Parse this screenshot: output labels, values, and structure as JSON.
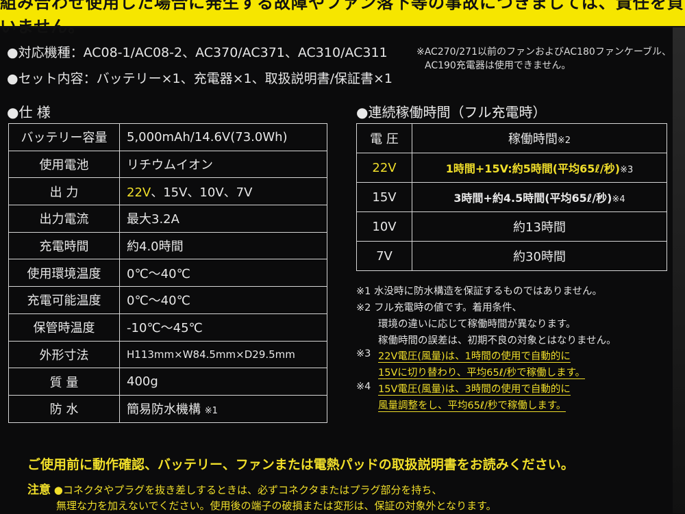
{
  "banner": "組み合わせ使用した場合に発生する故障やファン落下等の事故につきましては、責任を負いません。",
  "compat": "●対応機種：AC08-1/AC08-2、AC370/AC371、AC310/AC311",
  "contents": "●セット内容：バッテリー×1、充電器×1、取扱説明書/保証書×1",
  "compat_note": [
    "※AC270/271以前のファンおよびAC180ファンケーブル、",
    "AC190充電器は使用できません。"
  ],
  "spec_title": "●仕 様",
  "spec": [
    {
      "label": "バッテリー容量",
      "value": "5,000mAh/14.6V(73.0Wh)"
    },
    {
      "label": "使用電池",
      "value": "リチウムイオン"
    },
    {
      "label": "出 力",
      "value_hl": "22V",
      "value": "、15V、10V、7V"
    },
    {
      "label": "出力電流",
      "value": "最大3.2A"
    },
    {
      "label": "充電時間",
      "value": "約4.0時間"
    },
    {
      "label": "使用環境温度",
      "value": "0℃〜40℃"
    },
    {
      "label": "充電可能温度",
      "value": "0℃〜40℃"
    },
    {
      "label": "保管時温度",
      "value": "-10℃〜45℃"
    },
    {
      "label": "外形寸法",
      "value": "H113mm×W84.5mm×D29.5mm"
    },
    {
      "label": "質 量",
      "value": "400g"
    },
    {
      "label": "防 水",
      "value": "簡易防水機構",
      "mark": "※1"
    }
  ],
  "run_title": "●連続稼働時間（フル充電時）",
  "run_header": {
    "voltage": "電 圧",
    "time": "稼働時間",
    "mark": "※2"
  },
  "run": [
    {
      "voltage": "22V",
      "time": "1時間+15V:約5時間(平均65ℓ/秒)",
      "mark": "※3"
    },
    {
      "voltage": "15V",
      "time": "3時間+約4.5時間(平均65ℓ/秒)",
      "mark": "※4"
    },
    {
      "voltage": "10V",
      "time": "約13時間",
      "mark": ""
    },
    {
      "voltage": "7V",
      "time": "約30時間",
      "mark": ""
    }
  ],
  "footnotes": {
    "n1": "※1 水没時に防水構造を保証するものではありません。",
    "n2a": "※2 フル充電時の値です。着用条件、",
    "n2b": "環境の違いに応じて稼働時間が異なります。",
    "n2c": "稼働時間の誤差は、初期不良の対象とはなりません。",
    "n3_mark": "※3",
    "n3a": "22V電圧(風量)は、1時間の使用で自動的に",
    "n3b": "15Vに切り替わり、平均65ℓ/秒で稼働します。",
    "n4_mark": "※4",
    "n4a": "15V電圧(風量)は、3時間の使用で自動的に",
    "n4b": "風量調整をし、平均65ℓ/秒で稼働します。"
  },
  "bottom_warning": "ご使用前に動作確認、バッテリー、ファンまたは電熱パッドの取扱説明書をお読みください。",
  "caution_label": "注意",
  "caution_lines": [
    "●コネクタやプラグを抜き差しするときは、必ずコネクタまたはプラグ部分を持ち、",
    "無理な力を加えないでください。使用後の端子の破損または変形は、保証の対象外となります。"
  ]
}
